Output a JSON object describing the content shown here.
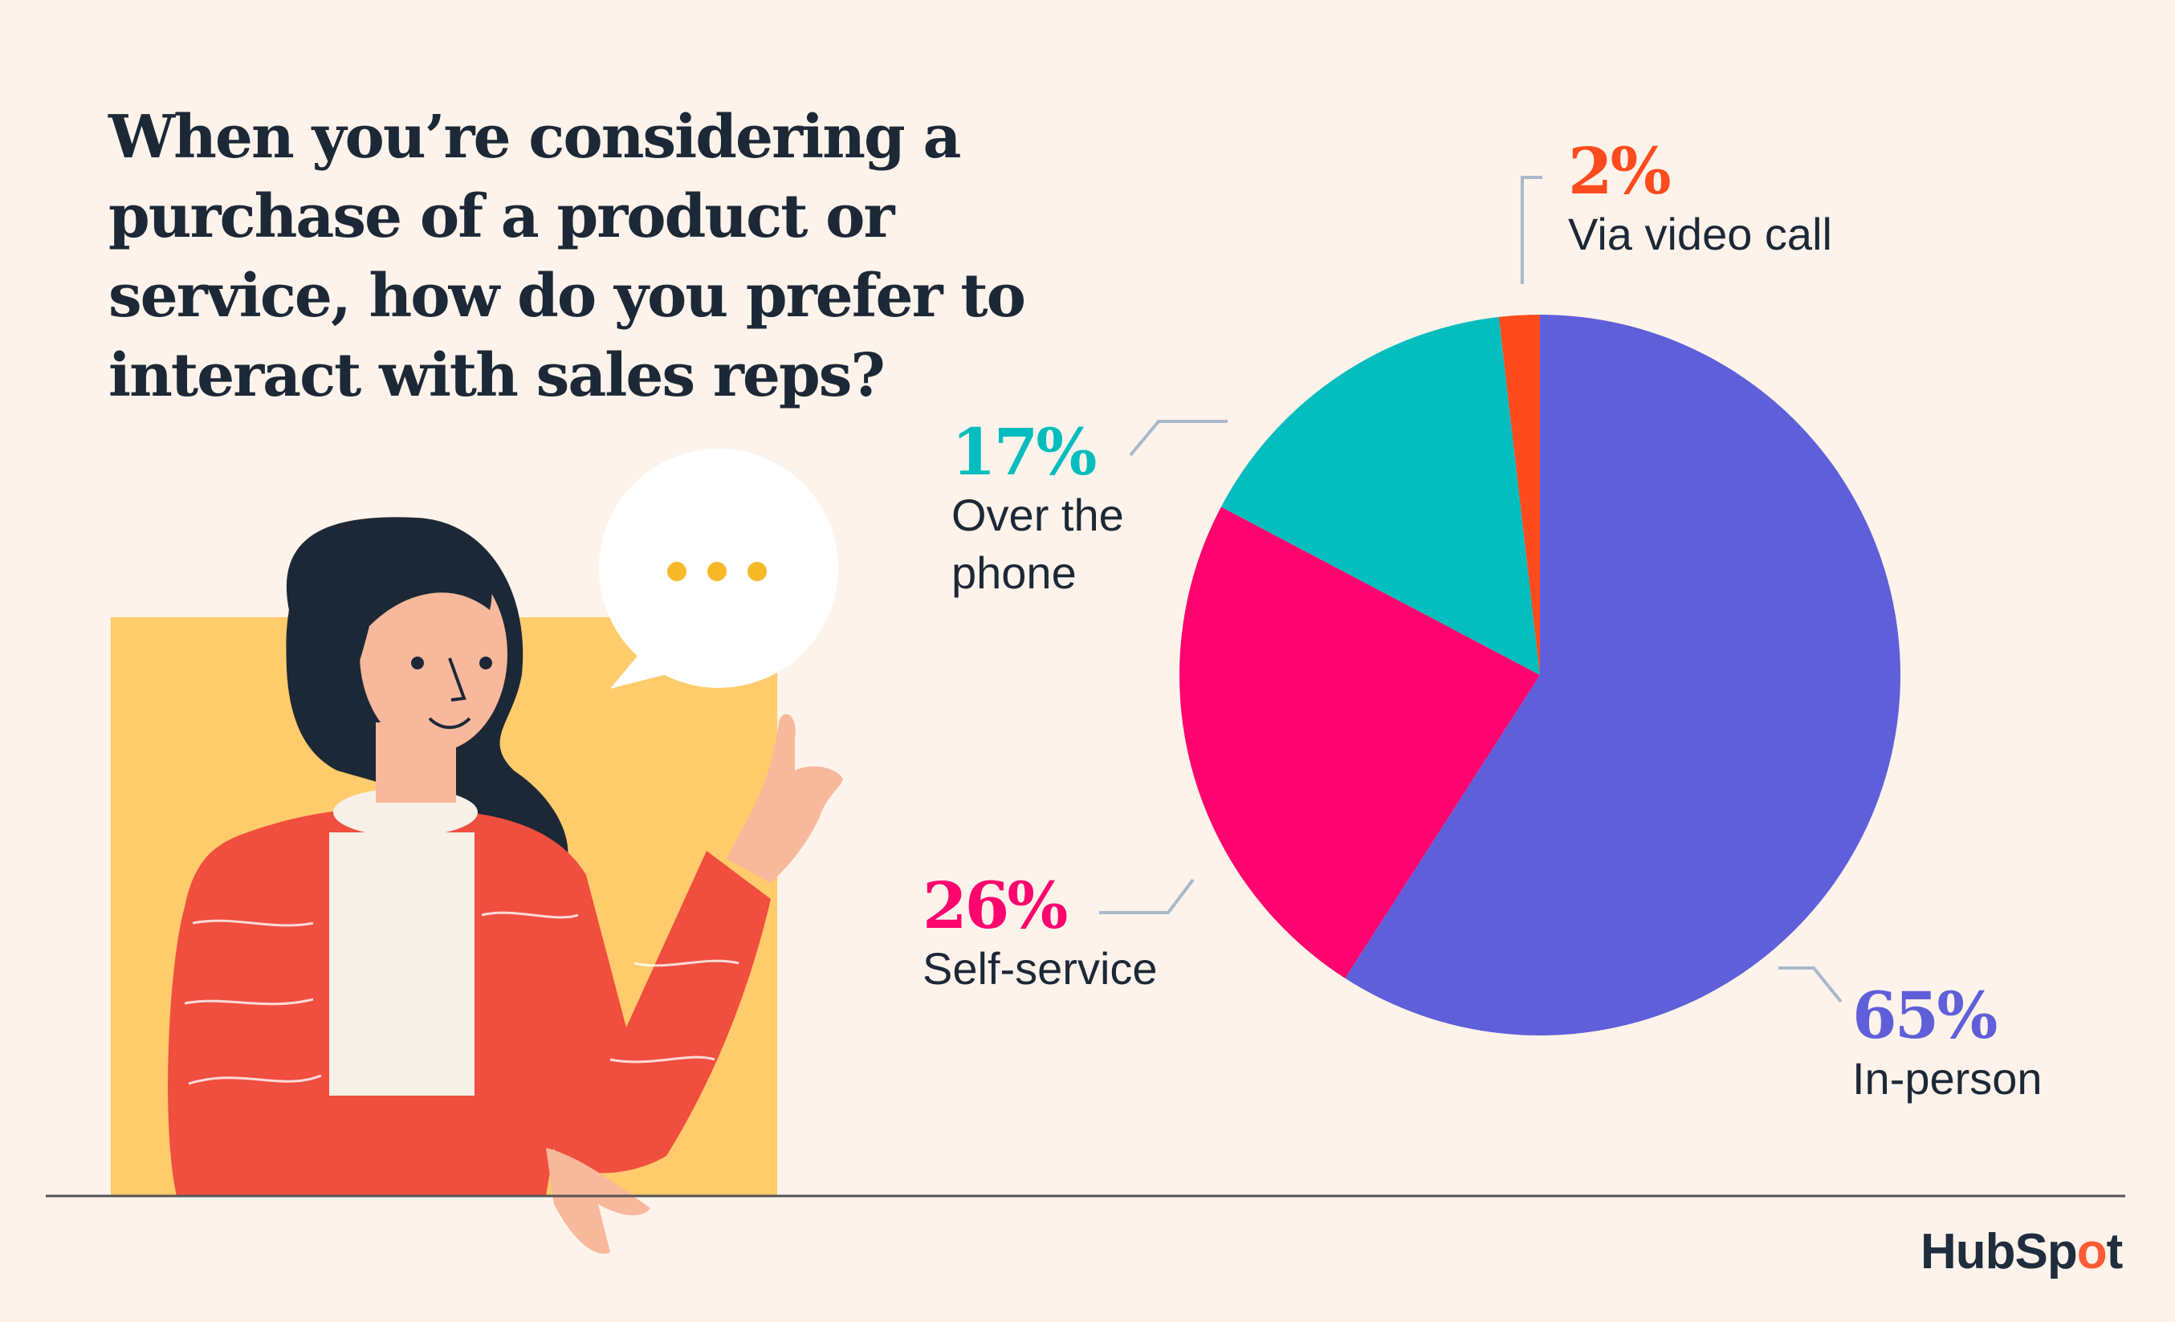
{
  "title": "When you’re considering a purchase of a product or service, how do you prefer to interact with sales reps?",
  "brand": {
    "name_part1": "HubSp",
    "name_o": "o",
    "name_part2": "t"
  },
  "chart_data": {
    "type": "pie",
    "title": "When you’re considering a purchase of a product or service, how do you prefer to interact with sales reps?",
    "start": "top",
    "direction": "clockwise",
    "slices": [
      {
        "label": "In-person",
        "value": 65,
        "value_label": "65%",
        "color": "#5F5FD9"
      },
      {
        "label": "Self-service",
        "value": 26,
        "value_label": "26%",
        "color": "#FF036E"
      },
      {
        "label": "Over the phone",
        "value": 17,
        "value_label": "17%",
        "color": "#03BDBE"
      },
      {
        "label": "Via video call",
        "value": 2,
        "value_label": "2%",
        "color": "#FF4B1E"
      }
    ]
  },
  "colors": {
    "background": "#FDF3EA",
    "text": "#1C2836",
    "leader": "#A9B9CB",
    "accent_panel": "#FFCB6B",
    "sweater": "#F04E3E"
  }
}
